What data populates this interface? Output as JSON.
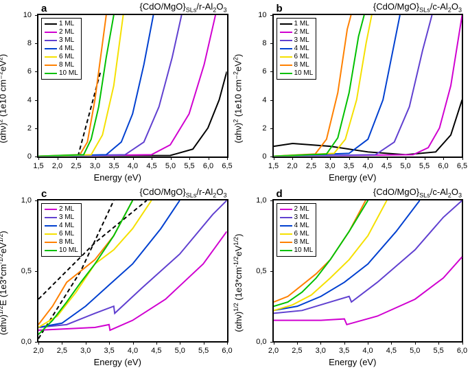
{
  "colors": {
    "1ML": "#000000",
    "2ML": "#d000d0",
    "3ML": "#6040d0",
    "4ML": "#0040d0",
    "6ML": "#f5e000",
    "8ML": "#ff8000",
    "10ML": "#00c000",
    "dash": "#000000",
    "border": "#000000"
  },
  "fonts": {
    "label_pt": 13,
    "tick_pt": 11,
    "panel_label_pt": 15,
    "legend_pt": 10
  },
  "panels": {
    "a": {
      "label": "a",
      "title": "{CdO/MgO}_SLs/r-Al₂O₃",
      "xlabel": "Energy (eV)",
      "ylabel": "(αhν)² (1e10 cm⁻²eV²)",
      "xlim": [
        1.5,
        6.5
      ],
      "xtick_step": 0.5,
      "ylim": [
        0,
        10
      ],
      "ytick_step": 2,
      "legend": [
        "1 ML",
        "2 ML",
        "3 ML",
        "4 ML",
        "6 ML",
        "8 ML",
        "10 ML"
      ],
      "legend_keys": [
        "1ML",
        "2ML",
        "3ML",
        "4ML",
        "6ML",
        "8ML",
        "10ML"
      ],
      "dash_lines": [
        [
          [
            2.55,
            0
          ],
          [
            3.15,
            6
          ]
        ]
      ],
      "series": {
        "1ML": [
          [
            1.5,
            0
          ],
          [
            5.0,
            0.05
          ],
          [
            5.6,
            0.5
          ],
          [
            6.0,
            2.0
          ],
          [
            6.3,
            4.0
          ],
          [
            6.5,
            6.0
          ]
        ],
        "2ML": [
          [
            1.5,
            0
          ],
          [
            4.5,
            0.1
          ],
          [
            5.0,
            0.8
          ],
          [
            5.5,
            3.0
          ],
          [
            5.9,
            6.5
          ],
          [
            6.2,
            10
          ]
        ],
        "3ML": [
          [
            1.5,
            0
          ],
          [
            3.8,
            0.1
          ],
          [
            4.3,
            1.0
          ],
          [
            4.7,
            3.5
          ],
          [
            5.05,
            7.0
          ],
          [
            5.3,
            10
          ]
        ],
        "4ML": [
          [
            1.5,
            0
          ],
          [
            3.3,
            0.1
          ],
          [
            3.7,
            1.0
          ],
          [
            4.0,
            3.0
          ],
          [
            4.3,
            6.5
          ],
          [
            4.55,
            10
          ]
        ],
        "6ML": [
          [
            1.5,
            0
          ],
          [
            2.9,
            0.1
          ],
          [
            3.2,
            1.5
          ],
          [
            3.5,
            5.0
          ],
          [
            3.75,
            10
          ]
        ],
        "8ML": [
          [
            1.5,
            0
          ],
          [
            2.6,
            0.1
          ],
          [
            2.8,
            1.0
          ],
          [
            3.0,
            4.0
          ],
          [
            3.2,
            8.0
          ],
          [
            3.3,
            10
          ]
        ],
        "10ML": [
          [
            1.5,
            0
          ],
          [
            2.7,
            0.1
          ],
          [
            2.9,
            1.2
          ],
          [
            3.1,
            3.5
          ],
          [
            3.3,
            7.0
          ],
          [
            3.5,
            10
          ]
        ]
      }
    },
    "b": {
      "label": "b",
      "title": "{CdO/MgO}_SLs/c-Al₂O₃",
      "xlabel": "Energy (eV)",
      "ylabel": "(αhν)² (1e10 cm⁻²eV²)",
      "xlim": [
        1.5,
        6.5
      ],
      "xtick_step": 0.5,
      "ylim": [
        0,
        10
      ],
      "ytick_step": 2,
      "legend": [
        "1 ML",
        "2 ML",
        "3 ML",
        "4 ML",
        "6 ML",
        "8 ML",
        "10 ML"
      ],
      "legend_keys": [
        "1ML",
        "2ML",
        "3ML",
        "4ML",
        "6ML",
        "8ML",
        "10ML"
      ],
      "series": {
        "1ML": [
          [
            1.5,
            0.7
          ],
          [
            2.0,
            0.9
          ],
          [
            3.0,
            0.7
          ],
          [
            4.0,
            0.3
          ],
          [
            5.0,
            0.1
          ],
          [
            5.8,
            0.3
          ],
          [
            6.2,
            1.5
          ],
          [
            6.5,
            4.0
          ]
        ],
        "2ML": [
          [
            1.5,
            0
          ],
          [
            5.2,
            0.1
          ],
          [
            5.6,
            0.6
          ],
          [
            5.9,
            2.0
          ],
          [
            6.2,
            5.0
          ],
          [
            6.5,
            10
          ]
        ],
        "3ML": [
          [
            1.5,
            0
          ],
          [
            4.2,
            0.1
          ],
          [
            4.7,
            1.0
          ],
          [
            5.1,
            3.5
          ],
          [
            5.45,
            7.5
          ],
          [
            5.7,
            10
          ]
        ],
        "4ML": [
          [
            1.5,
            0
          ],
          [
            3.5,
            0.2
          ],
          [
            4.0,
            1.2
          ],
          [
            4.4,
            4.0
          ],
          [
            4.7,
            8.0
          ],
          [
            4.85,
            10
          ]
        ],
        "6ML": [
          [
            1.5,
            0
          ],
          [
            3.1,
            0.2
          ],
          [
            3.4,
            1.2
          ],
          [
            3.7,
            4.0
          ],
          [
            3.95,
            8.0
          ],
          [
            4.1,
            10
          ]
        ],
        "8ML": [
          [
            1.5,
            0
          ],
          [
            2.6,
            0.15
          ],
          [
            2.9,
            1.2
          ],
          [
            3.2,
            4.5
          ],
          [
            3.45,
            9.0
          ],
          [
            3.55,
            10
          ]
        ],
        "10ML": [
          [
            1.5,
            0
          ],
          [
            2.9,
            0.15
          ],
          [
            3.2,
            1.3
          ],
          [
            3.5,
            4.5
          ],
          [
            3.75,
            8.5
          ],
          [
            3.9,
            10
          ]
        ]
      }
    },
    "c": {
      "label": "c",
      "title": "{CdO/MgO}_SLs/r-Al₂O₃",
      "xlabel": "Energy (eV)",
      "ylabel": "(αhν)^{1/2}E (1e3*cm^{-1/2}eV^{1/2})",
      "xlim": [
        2.0,
        6.0
      ],
      "xtick_step": 0.5,
      "ylim": [
        0,
        1.0
      ],
      "ytick_step": 0.5,
      "legend": [
        "2 ML",
        "3 ML",
        "4 ML",
        "6 ML",
        "8 ML",
        "10 ML"
      ],
      "legend_keys": [
        "2ML",
        "3ML",
        "4ML",
        "6ML",
        "8ML",
        "10ML"
      ],
      "dash_lines": [
        [
          [
            2.0,
            0.02
          ],
          [
            2.9,
            0.5
          ],
          [
            3.6,
            1.0
          ]
        ],
        [
          [
            2.0,
            0.3
          ],
          [
            3.2,
            0.7
          ],
          [
            4.3,
            1.0
          ]
        ]
      ],
      "series": {
        "2ML": [
          [
            2.0,
            0.08
          ],
          [
            3.2,
            0.1
          ],
          [
            3.5,
            0.12
          ],
          [
            3.52,
            0.08
          ],
          [
            4.0,
            0.15
          ],
          [
            4.7,
            0.3
          ],
          [
            5.5,
            0.55
          ],
          [
            6.0,
            0.78
          ]
        ],
        "3ML": [
          [
            2.0,
            0.1
          ],
          [
            2.6,
            0.12
          ],
          [
            3.2,
            0.2
          ],
          [
            3.6,
            0.25
          ],
          [
            3.62,
            0.2
          ],
          [
            4.2,
            0.38
          ],
          [
            5.0,
            0.62
          ],
          [
            5.7,
            0.9
          ],
          [
            6.0,
            1.0
          ]
        ],
        "4ML": [
          [
            2.0,
            0.1
          ],
          [
            2.5,
            0.13
          ],
          [
            3.0,
            0.25
          ],
          [
            3.5,
            0.4
          ],
          [
            4.0,
            0.55
          ],
          [
            4.6,
            0.8
          ],
          [
            5.0,
            1.0
          ]
        ],
        "6ML": [
          [
            2.0,
            0.1
          ],
          [
            2.4,
            0.18
          ],
          [
            2.8,
            0.35
          ],
          [
            3.2,
            0.55
          ],
          [
            3.6,
            0.65
          ],
          [
            4.0,
            0.8
          ],
          [
            4.4,
            1.0
          ]
        ],
        "8ML": [
          [
            2.0,
            0.12
          ],
          [
            2.3,
            0.25
          ],
          [
            2.6,
            0.42
          ],
          [
            2.9,
            0.5
          ],
          [
            3.2,
            0.58
          ],
          [
            3.6,
            0.75
          ],
          [
            4.0,
            1.0
          ]
        ],
        "10ML": [
          [
            2.0,
            0.05
          ],
          [
            2.3,
            0.15
          ],
          [
            2.6,
            0.28
          ],
          [
            2.9,
            0.42
          ],
          [
            3.2,
            0.55
          ],
          [
            3.6,
            0.75
          ],
          [
            4.0,
            1.0
          ]
        ]
      }
    },
    "d": {
      "label": "d",
      "title": "{CdO/MgO}_SLs/c-Al₂O₃",
      "xlabel": "Energy (eV)",
      "ylabel": "(αhν)^{1/2} (1e3*cm^{-1/2}eV^{1/2})",
      "xlim": [
        2.0,
        6.0
      ],
      "xtick_step": 0.5,
      "ylim": [
        0,
        1.0
      ],
      "ytick_step": 0.5,
      "legend": [
        "2 ML",
        "3 ML",
        "4 ML",
        "6 ML",
        "8 ML",
        "10 ML"
      ],
      "legend_keys": [
        "2ML",
        "3ML",
        "4ML",
        "6ML",
        "8ML",
        "10ML"
      ],
      "series": {
        "2ML": [
          [
            2.0,
            0.15
          ],
          [
            3.0,
            0.15
          ],
          [
            3.5,
            0.16
          ],
          [
            3.55,
            0.12
          ],
          [
            4.2,
            0.18
          ],
          [
            5.0,
            0.3
          ],
          [
            5.6,
            0.45
          ],
          [
            6.0,
            0.6
          ]
        ],
        "3ML": [
          [
            2.0,
            0.2
          ],
          [
            2.6,
            0.22
          ],
          [
            3.2,
            0.28
          ],
          [
            3.6,
            0.32
          ],
          [
            3.65,
            0.28
          ],
          [
            4.2,
            0.42
          ],
          [
            5.0,
            0.65
          ],
          [
            5.6,
            0.88
          ],
          [
            6.0,
            1.0
          ]
        ],
        "4ML": [
          [
            2.0,
            0.22
          ],
          [
            2.5,
            0.25
          ],
          [
            3.0,
            0.32
          ],
          [
            3.5,
            0.42
          ],
          [
            4.0,
            0.55
          ],
          [
            4.6,
            0.78
          ],
          [
            5.1,
            1.0
          ]
        ],
        "6ML": [
          [
            2.0,
            0.22
          ],
          [
            2.4,
            0.26
          ],
          [
            2.8,
            0.33
          ],
          [
            3.2,
            0.45
          ],
          [
            3.6,
            0.58
          ],
          [
            4.0,
            0.75
          ],
          [
            4.4,
            1.0
          ]
        ],
        "8ML": [
          [
            2.0,
            0.28
          ],
          [
            2.3,
            0.32
          ],
          [
            2.6,
            0.4
          ],
          [
            2.9,
            0.48
          ],
          [
            3.2,
            0.58
          ],
          [
            3.6,
            0.78
          ],
          [
            3.95,
            1.0
          ]
        ],
        "10ML": [
          [
            2.0,
            0.25
          ],
          [
            2.3,
            0.28
          ],
          [
            2.6,
            0.35
          ],
          [
            2.9,
            0.45
          ],
          [
            3.2,
            0.58
          ],
          [
            3.6,
            0.78
          ],
          [
            4.0,
            1.0
          ]
        ]
      }
    }
  }
}
